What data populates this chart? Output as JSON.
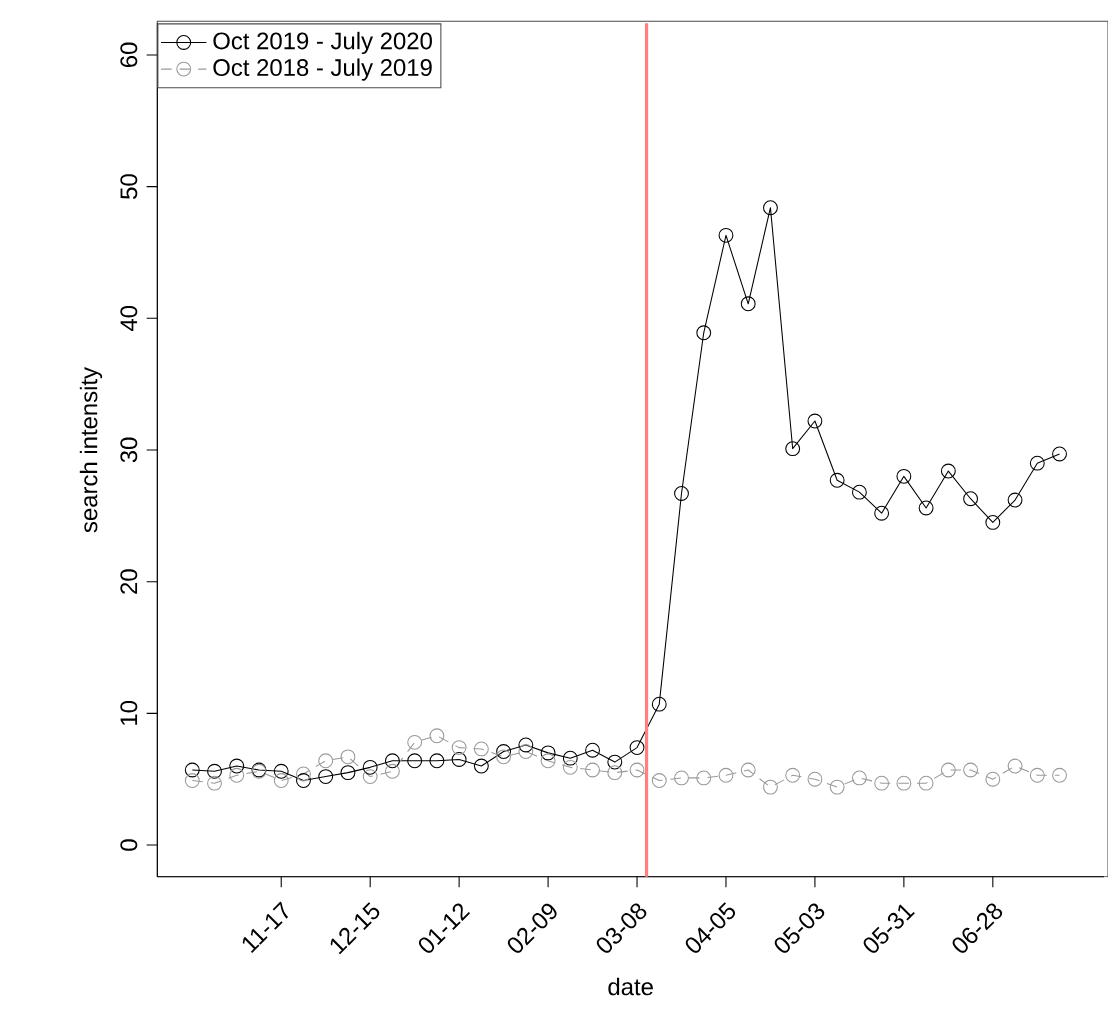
{
  "chart_data": {
    "type": "line",
    "xlabel": "date",
    "ylabel": "search intensity",
    "x": [
      "2019-10-20",
      "2019-10-27",
      "2019-11-03",
      "2019-11-10",
      "2019-11-17",
      "2019-11-24",
      "2019-12-01",
      "2019-12-08",
      "2019-12-15",
      "2019-12-22",
      "2019-12-29",
      "2020-01-05",
      "2020-01-12",
      "2020-01-19",
      "2020-01-26",
      "2020-02-02",
      "2020-02-09",
      "2020-02-16",
      "2020-02-23",
      "2020-03-01",
      "2020-03-08",
      "2020-03-15",
      "2020-03-22",
      "2020-03-29",
      "2020-04-05",
      "2020-04-12",
      "2020-04-19",
      "2020-04-26",
      "2020-05-03",
      "2020-05-10",
      "2020-05-17",
      "2020-05-24",
      "2020-05-31",
      "2020-06-07",
      "2020-06-14",
      "2020-06-21",
      "2020-06-28",
      "2020-07-05",
      "2020-07-12",
      "2020-07-19"
    ],
    "series": [
      {
        "name": "Oct 2019 - July 2020",
        "color": "#000000",
        "line_style": "solid",
        "values": [
          5.7,
          5.6,
          6.0,
          5.7,
          5.6,
          4.9,
          5.2,
          5.5,
          5.9,
          6.4,
          6.4,
          6.4,
          6.5,
          6.0,
          7.1,
          7.6,
          7.0,
          6.6,
          7.2,
          6.3,
          7.4,
          10.7,
          26.7,
          38.9,
          46.3,
          41.1,
          48.4,
          30.1,
          32.2,
          27.7,
          26.8,
          25.2,
          28.0,
          25.6,
          28.4,
          26.3,
          24.5,
          26.2,
          29.0,
          29.7
        ]
      },
      {
        "name": "Oct 2018 - July 2019",
        "color": "#999999",
        "line_style": "dashed",
        "values": [
          4.9,
          4.7,
          5.3,
          5.6,
          4.9,
          5.4,
          6.4,
          6.7,
          5.2,
          5.6,
          7.8,
          8.3,
          7.4,
          7.3,
          6.7,
          7.1,
          6.4,
          5.9,
          5.7,
          5.5,
          5.7,
          4.9,
          5.1,
          5.1,
          5.3,
          5.7,
          4.4,
          5.3,
          5.0,
          4.4,
          5.1,
          4.7,
          4.7,
          4.7,
          5.7,
          5.7,
          5.0,
          6.0,
          5.3,
          5.3
        ]
      }
    ],
    "xlim": [
      "2019-10-09",
      "2020-08-02"
    ],
    "xticks": [
      {
        "value": "2019-11-17",
        "label": "11-17"
      },
      {
        "value": "2019-12-15",
        "label": "12-15"
      },
      {
        "value": "2020-01-12",
        "label": "01-12"
      },
      {
        "value": "2020-02-09",
        "label": "02-09"
      },
      {
        "value": "2020-03-08",
        "label": "03-08"
      },
      {
        "value": "2020-04-05",
        "label": "04-05"
      },
      {
        "value": "2020-05-03",
        "label": "05-03"
      },
      {
        "value": "2020-05-31",
        "label": "05-31"
      },
      {
        "value": "2020-06-28",
        "label": "06-28"
      }
    ],
    "ylim": [
      -2.4,
      62.4
    ],
    "yticks": [
      0,
      10,
      20,
      30,
      40,
      50,
      60
    ],
    "ref_lines": [
      {
        "axis": "x",
        "value": "2020-03-11",
        "color": "#ff8080"
      }
    ],
    "marker": "circle",
    "grid": false,
    "legend": "top left"
  }
}
